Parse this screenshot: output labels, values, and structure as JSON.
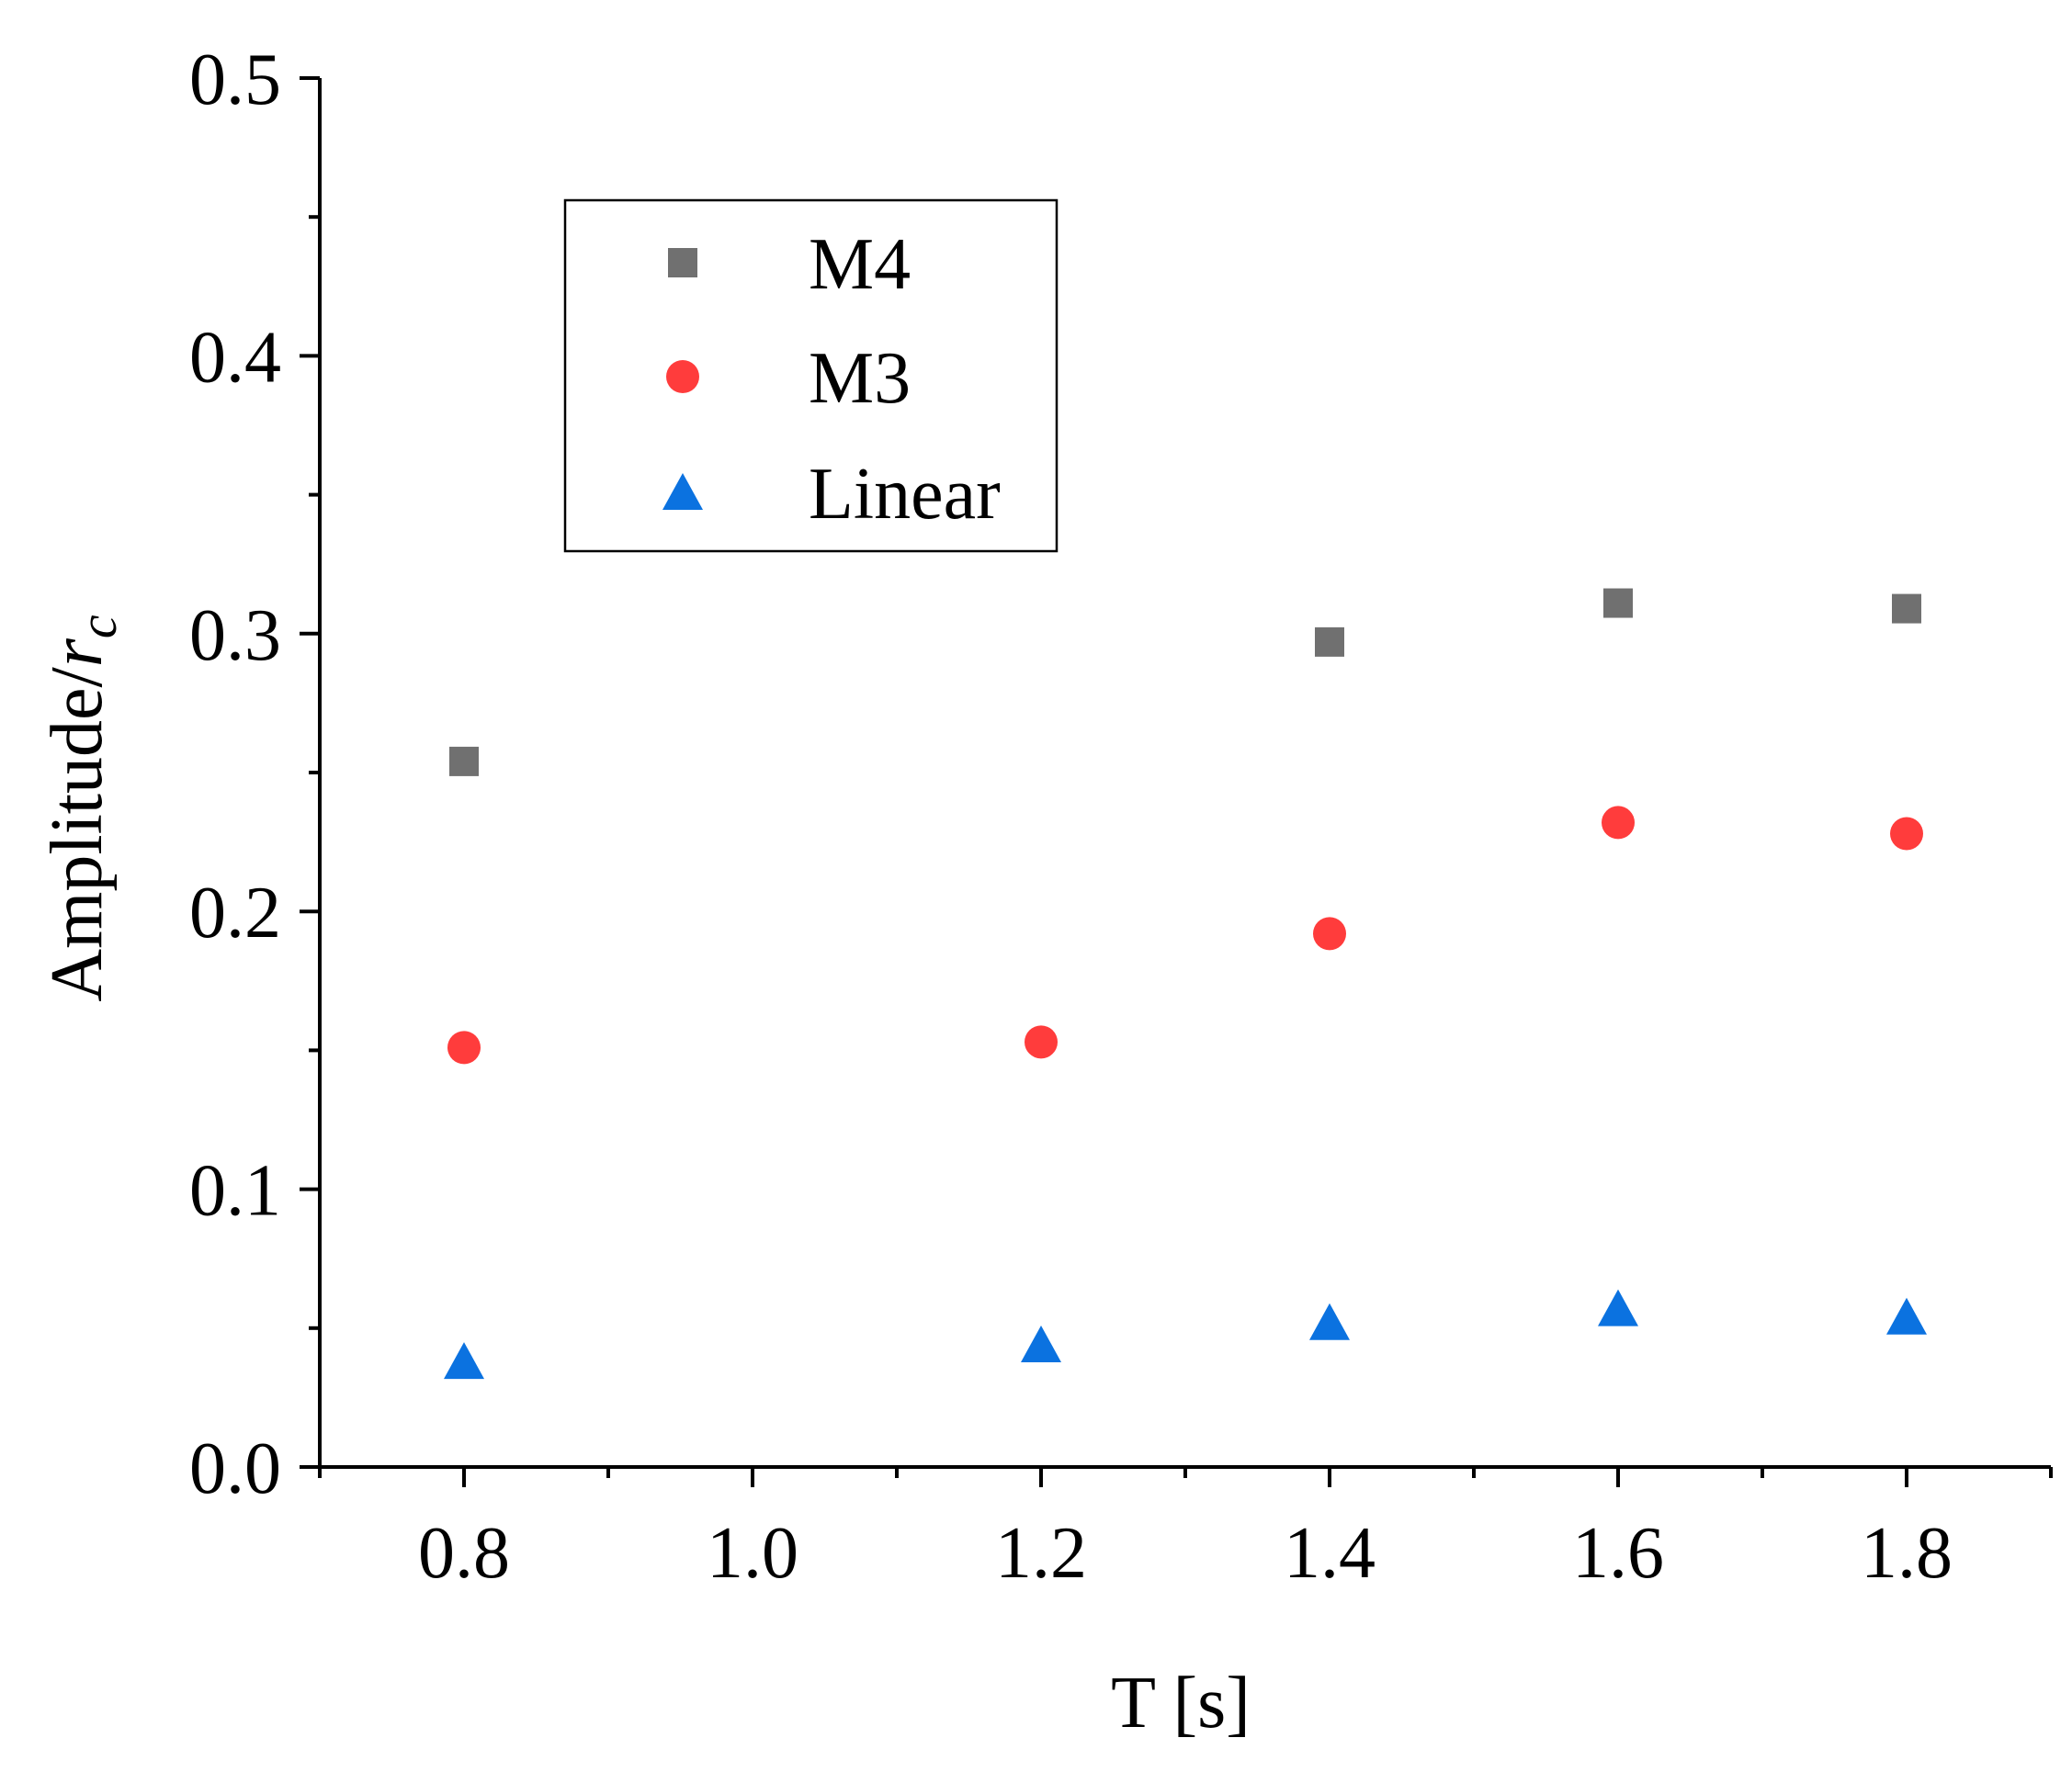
{
  "chart_data": {
    "type": "scatter",
    "title": "",
    "xlabel": "T [s]",
    "ylabel_main": "Amplitude/",
    "ylabel_var": "r",
    "ylabel_sub": "c",
    "xlim": [
      0.7,
      1.9
    ],
    "ylim": [
      0.0,
      0.5
    ],
    "x_major_ticks": [
      0.8,
      1.0,
      1.2,
      1.4,
      1.6,
      1.8
    ],
    "x_tick_labels": [
      "0.8",
      "1.0",
      "1.2",
      "1.4",
      "1.6",
      "1.8"
    ],
    "x_minor_ticks": [
      0.7,
      0.9,
      1.1,
      1.3,
      1.5,
      1.7,
      1.9
    ],
    "y_major_ticks": [
      0.0,
      0.1,
      0.2,
      0.3,
      0.4,
      0.5
    ],
    "y_tick_labels": [
      "0.0",
      "0.1",
      "0.2",
      "0.3",
      "0.4",
      "0.5"
    ],
    "y_minor_ticks": [
      0.05,
      0.15,
      0.25,
      0.35,
      0.45
    ],
    "grid": false,
    "legend_position": "top-left",
    "series": [
      {
        "name": "M4",
        "marker": "square",
        "color": "#707070",
        "x": [
          0.8,
          1.4,
          1.6,
          1.8
        ],
        "y": [
          0.254,
          0.297,
          0.311,
          0.309
        ]
      },
      {
        "name": "M3",
        "marker": "circle",
        "color": "#ff3c3c",
        "x": [
          0.8,
          1.2,
          1.4,
          1.6,
          1.8
        ],
        "y": [
          0.151,
          0.153,
          0.192,
          0.232,
          0.228
        ]
      },
      {
        "name": "Linear",
        "marker": "triangle",
        "color": "#0b72e0",
        "x": [
          0.8,
          1.2,
          1.4,
          1.6,
          1.8
        ],
        "y": [
          0.038,
          0.044,
          0.052,
          0.057,
          0.054
        ]
      }
    ]
  }
}
